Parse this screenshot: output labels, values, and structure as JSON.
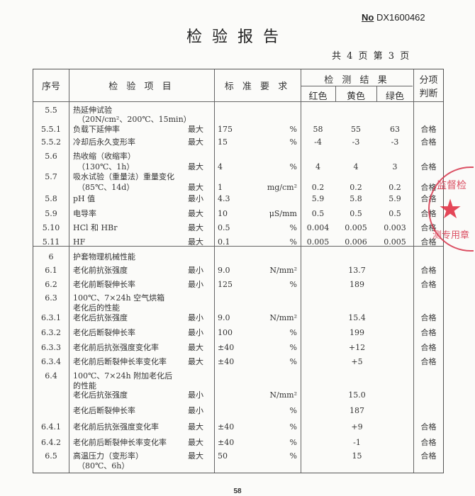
{
  "header": {
    "report_no_prefix": "No",
    "report_no": "DX1600462",
    "title": "检验报告",
    "pages": "共 4 页 第 3 页"
  },
  "table": {
    "columns": {
      "seq": "序号",
      "item": "检 验 项 目",
      "standard": "标 准 要 求",
      "results": "检 测 结 果",
      "red": "红色",
      "yellow": "黄色",
      "green": "绿色",
      "judgement_line1": "分项",
      "judgement_line2": "判断"
    },
    "rows": [
      {
        "seq": "5.5",
        "item": "热延伸试验",
        "q": "",
        "std": "",
        "unit": "",
        "red": "",
        "yellow": "",
        "green": "",
        "single": "",
        "judge": ""
      },
      {
        "seq": "",
        "item": "（20N/cm²、200℃、15min）",
        "q": "",
        "std": "",
        "unit": "",
        "red": "",
        "yellow": "",
        "green": "",
        "single": "",
        "judge": ""
      },
      {
        "seq": "5.5.1",
        "item": "负载下延伸率",
        "q": "最大",
        "std": "175",
        "unit": "%",
        "red": "58",
        "yellow": "55",
        "green": "63",
        "single": "",
        "judge": "合格"
      },
      {
        "seq": "5.5.2",
        "item": "冷却后永久变形率",
        "q": "最大",
        "std": "15",
        "unit": "%",
        "red": "-4",
        "yellow": "-3",
        "green": "-3",
        "single": "",
        "judge": "合格"
      },
      {
        "seq": "5.6",
        "item": "热收缩（收缩率）",
        "q": "",
        "std": "",
        "unit": "",
        "red": "",
        "yellow": "",
        "green": "",
        "single": "",
        "judge": ""
      },
      {
        "seq": "",
        "item": "（130℃、1h）",
        "q": "最大",
        "std": "4",
        "unit": "%",
        "red": "4",
        "yellow": "4",
        "green": "3",
        "single": "",
        "judge": "合格"
      },
      {
        "seq": "5.7",
        "item": "吸水试验（重量法）重量变化",
        "q": "",
        "std": "",
        "unit": "",
        "red": "",
        "yellow": "",
        "green": "",
        "single": "",
        "judge": ""
      },
      {
        "seq": "",
        "item": "（85℃、14d）",
        "q": "最大",
        "std": "1",
        "unit": "mg/cm²",
        "red": "0.2",
        "yellow": "0.2",
        "green": "0.2",
        "single": "",
        "judge": "合格"
      },
      {
        "seq": "5.8",
        "item": "pH 值",
        "q": "最小",
        "std": "4.3",
        "unit": "",
        "red": "5.9",
        "yellow": "5.8",
        "green": "5.9",
        "single": "",
        "judge": "合格"
      },
      {
        "seq": "5.9",
        "item": "电导率",
        "q": "最大",
        "std": "10",
        "unit": "μS/mm",
        "red": "0.5",
        "yellow": "0.5",
        "green": "0.5",
        "single": "",
        "judge": "合格"
      },
      {
        "seq": "5.10",
        "item": "HCl 和 HBr",
        "q": "最大",
        "std": "0.5",
        "unit": "%",
        "red": "0.004",
        "yellow": "0.005",
        "green": "0.003",
        "single": "",
        "judge": "合格"
      },
      {
        "seq": "5.11",
        "item": "HF",
        "q": "最大",
        "std": "0.1",
        "unit": "%",
        "red": "0.005",
        "yellow": "0.006",
        "green": "0.005",
        "single": "",
        "judge": "合格"
      },
      {
        "seq": "6",
        "item": "护套物理机械性能",
        "q": "",
        "std": "",
        "unit": "",
        "red": "",
        "yellow": "",
        "green": "",
        "single": "",
        "judge": ""
      },
      {
        "seq": "6.1",
        "item": "老化前抗张强度",
        "q": "最小",
        "std": "9.0",
        "unit": "N/mm²",
        "red": "",
        "yellow": "",
        "green": "",
        "single": "13.7",
        "judge": "合格"
      },
      {
        "seq": "6.2",
        "item": "老化前断裂伸长率",
        "q": "最小",
        "std": "125",
        "unit": "%",
        "red": "",
        "yellow": "",
        "green": "",
        "single": "189",
        "judge": "合格"
      },
      {
        "seq": "6.3",
        "item": "100℃、7×24h 空气烘箱",
        "q": "",
        "std": "",
        "unit": "",
        "red": "",
        "yellow": "",
        "green": "",
        "single": "",
        "judge": ""
      },
      {
        "seq": "",
        "item": "老化后的性能",
        "q": "",
        "std": "",
        "unit": "",
        "red": "",
        "yellow": "",
        "green": "",
        "single": "",
        "judge": ""
      },
      {
        "seq": "6.3.1",
        "item": "老化后抗张强度",
        "q": "最小",
        "std": "9.0",
        "unit": "N/mm²",
        "red": "",
        "yellow": "",
        "green": "",
        "single": "15.4",
        "judge": "合格"
      },
      {
        "seq": "6.3.2",
        "item": "老化后断裂伸长率",
        "q": "最小",
        "std": "100",
        "unit": "%",
        "red": "",
        "yellow": "",
        "green": "",
        "single": "199",
        "judge": "合格"
      },
      {
        "seq": "6.3.3",
        "item": "老化前后抗张强度变化率",
        "q": "最大",
        "std": "±40",
        "unit": "%",
        "red": "",
        "yellow": "",
        "green": "",
        "single": "+12",
        "judge": "合格"
      },
      {
        "seq": "6.3.4",
        "item": "老化前后断裂伸长率变化率",
        "q": "最大",
        "std": "±40",
        "unit": "%",
        "red": "",
        "yellow": "",
        "green": "",
        "single": "+5",
        "judge": "合格"
      },
      {
        "seq": "6.4",
        "item": "100℃、7×24h 附加老化后",
        "q": "",
        "std": "",
        "unit": "",
        "red": "",
        "yellow": "",
        "green": "",
        "single": "",
        "judge": ""
      },
      {
        "seq": "",
        "item": "的性能",
        "q": "",
        "std": "",
        "unit": "",
        "red": "",
        "yellow": "",
        "green": "",
        "single": "",
        "judge": ""
      },
      {
        "seq": "",
        "item": "老化后抗张强度",
        "q": "最小",
        "std": "",
        "unit": "N/mm²",
        "red": "",
        "yellow": "",
        "green": "",
        "single": "15.0",
        "judge": ""
      },
      {
        "seq": "",
        "item": "老化后断裂伸长率",
        "q": "最小",
        "std": "",
        "unit": "%",
        "red": "",
        "yellow": "",
        "green": "",
        "single": "187",
        "judge": ""
      },
      {
        "seq": "6.4.1",
        "item": "老化前后抗张强度变化率",
        "q": "最大",
        "std": "±40",
        "unit": "%",
        "red": "",
        "yellow": "",
        "green": "",
        "single": "+9",
        "judge": "合格"
      },
      {
        "seq": "6.4.2",
        "item": "老化前后断裂伸长率变化率",
        "q": "最大",
        "std": "±40",
        "unit": "%",
        "red": "",
        "yellow": "",
        "green": "",
        "single": "-1",
        "judge": "合格"
      },
      {
        "seq": "6.5",
        "item": "高温压力（变形率）",
        "q": "最大",
        "std": "50",
        "unit": "%",
        "red": "",
        "yellow": "",
        "green": "",
        "single": "15",
        "judge": "合格"
      },
      {
        "seq": "",
        "item": "（80℃、6h）",
        "q": "",
        "std": "",
        "unit": "",
        "red": "",
        "yellow": "",
        "green": "",
        "single": "",
        "judge": ""
      }
    ]
  },
  "stamp": {
    "text_top": "监督检",
    "text_bottom": "测专用章",
    "color": "#d6334a"
  },
  "footer": {
    "page_number": "58"
  }
}
